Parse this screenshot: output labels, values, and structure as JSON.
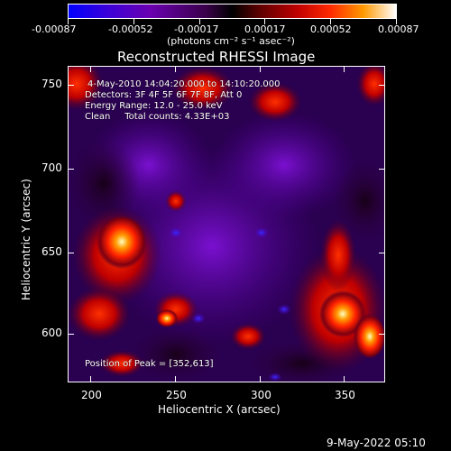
{
  "colorbar": {
    "tick_labels": [
      "-0.00087",
      "-0.00052",
      "-0.00017",
      "0.00017",
      "0.00052",
      "0.00087"
    ],
    "units": "(photons cm⁻² s⁻¹ asec⁻²)"
  },
  "plot": {
    "title": "Reconstructed RHESSI Image",
    "x_axis_label": "Heliocentric X (arcsec)",
    "y_axis_label": "Heliocentric Y (arcsec)",
    "x_ticks": [
      "200",
      "250",
      "300",
      "350"
    ],
    "y_ticks": [
      "750",
      "700",
      "650",
      "600"
    ]
  },
  "info": {
    "time_range": "4-May-2010 14:04:20.000 to 14:10:20.000",
    "detectors": "Detectors: 3F 4F 5F 6F 7F 8F, Att 0",
    "energy_range": "Energy Range: 12.0 - 25.0 keV",
    "clean_counts": "Clean     Total counts: 4.33E+03",
    "peak": "Position of Peak = [352,613]"
  },
  "footer": {
    "date": "9-May-2022 05:10"
  },
  "colors": {
    "background": "#000000",
    "map_base": "#2a0050"
  }
}
